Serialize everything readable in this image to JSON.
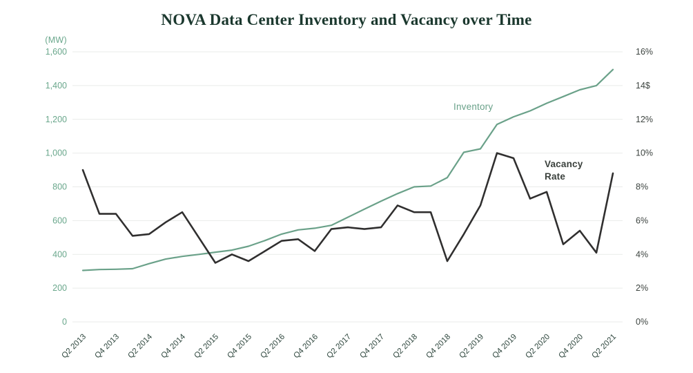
{
  "chart_data": {
    "type": "line",
    "title": "NOVA Data Center Inventory and Vacancy over Time",
    "left_axis": {
      "unit": "(MW)",
      "min": 0,
      "max": 1600,
      "tick_labels": [
        "1,600",
        "1,400",
        "1,200",
        "1,000",
        "800",
        "600",
        "400",
        "200",
        "0"
      ]
    },
    "right_axis": {
      "min": 0,
      "max": 16,
      "tick_labels": [
        "16%",
        "14$",
        "12%",
        "10%",
        "8%",
        "6%",
        "4%",
        "2%",
        "0%"
      ]
    },
    "quarters": [
      "Q2 2013",
      "Q3 2013",
      "Q4 2013",
      "Q1 2014",
      "Q2 2014",
      "Q3 2014",
      "Q4 2014",
      "Q1 2015",
      "Q2 2015",
      "Q3 2015",
      "Q4 2015",
      "Q1 2016",
      "Q2 2016",
      "Q3 2016",
      "Q4 2016",
      "Q1 2017",
      "Q2 2017",
      "Q3 2017",
      "Q4 2017",
      "Q1 2018",
      "Q2 2018",
      "Q3 2018",
      "Q4 2018",
      "Q1 2019",
      "Q2 2019",
      "Q3 2019",
      "Q4 2019",
      "Q1 2020",
      "Q2 2020",
      "Q3 2020",
      "Q4 2020",
      "Q1 2021",
      "Q2 2021"
    ],
    "x_label_every": 2,
    "grid": "horizontal-only",
    "series": [
      {
        "name": "Inventory",
        "axis": "left",
        "color": "#6aa189",
        "stroke_width": 2.2,
        "values": [
          305,
          310,
          312,
          315,
          345,
          372,
          388,
          400,
          413,
          425,
          448,
          482,
          520,
          545,
          555,
          572,
          620,
          668,
          715,
          760,
          800,
          805,
          855,
          1005,
          1025,
          1170,
          1215,
          1250,
          1295,
          1335,
          1375,
          1400,
          1495
        ]
      },
      {
        "name": "Vacancy Rate",
        "axis": "right",
        "color": "#302f2f",
        "stroke_width": 2.6,
        "values": [
          9.0,
          6.4,
          6.4,
          5.1,
          5.2,
          5.9,
          6.5,
          5.0,
          3.5,
          4.0,
          3.6,
          4.2,
          4.8,
          4.9,
          4.2,
          5.5,
          5.6,
          5.5,
          5.6,
          6.9,
          6.5,
          6.5,
          3.6,
          5.2,
          6.9,
          10.0,
          9.7,
          7.3,
          7.7,
          4.6,
          5.4,
          4.1,
          8.8
        ]
      }
    ],
    "annotations": {
      "inventory_label": "Inventory",
      "vacancy_label_line1": "Vacancy",
      "vacancy_label_line2": "Rate"
    }
  }
}
